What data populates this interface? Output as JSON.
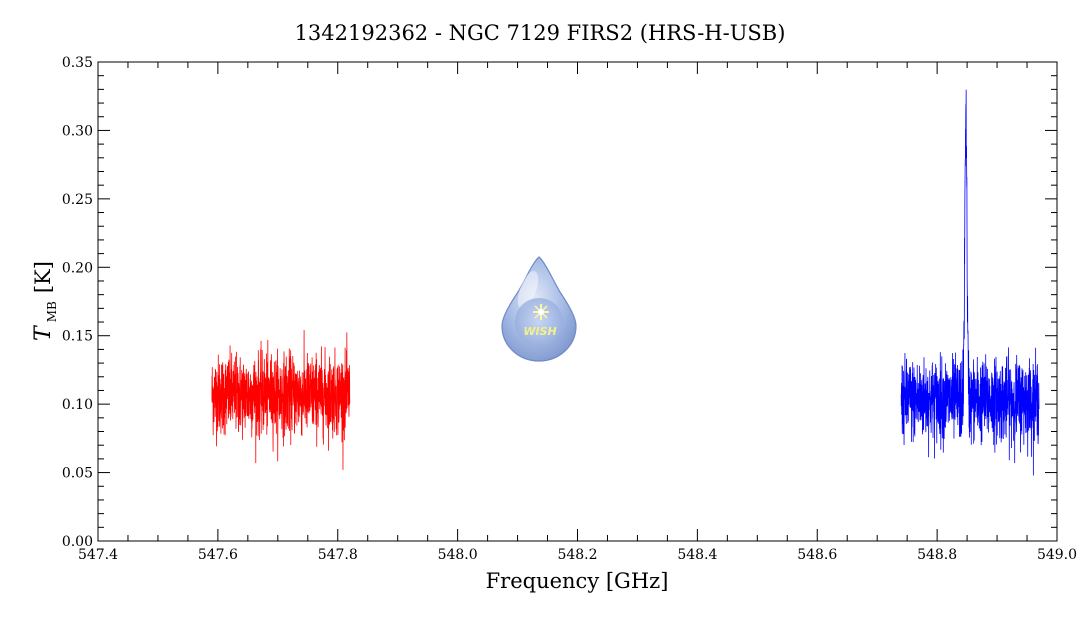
{
  "chart_data": {
    "type": "line",
    "title": "1342192362 - NGC 7129 FIRS2 (HRS-H-USB)",
    "xlabel": "Frequency [GHz]",
    "ylabel_main": "T",
    "ylabel_sub": "MB",
    "ylabel_unit": "[K]",
    "xlim": [
      547.4,
      549.0
    ],
    "ylim": [
      0.0,
      0.35
    ],
    "xticks": [
      547.4,
      547.6,
      547.8,
      548.0,
      548.2,
      548.4,
      548.6,
      548.8,
      549.0
    ],
    "xtick_labels": [
      "547.4",
      "547.6",
      "547.8",
      "548.0",
      "548.2",
      "548.4",
      "548.6",
      "548.8",
      "549.0"
    ],
    "yticks": [
      0.0,
      0.05,
      0.1,
      0.15,
      0.2,
      0.25,
      0.3,
      0.35
    ],
    "ytick_labels": [
      "0.00",
      "0.05",
      "0.10",
      "0.15",
      "0.20",
      "0.25",
      "0.30",
      "0.35"
    ],
    "grid": false,
    "series": [
      {
        "color": "#ff0000",
        "x_start": 547.59,
        "x_end": 547.82,
        "baseline": 0.107,
        "noise_range": [
          0.052,
          0.16
        ],
        "peak": null
      },
      {
        "color": "#0000ff",
        "x_start": 548.74,
        "x_end": 548.97,
        "baseline": 0.103,
        "noise_range": [
          0.04,
          0.15
        ],
        "peak": {
          "x": 548.848,
          "y": 0.314
        }
      }
    ],
    "logo": {
      "text": "WISH",
      "color": "#8fa8d8"
    }
  }
}
